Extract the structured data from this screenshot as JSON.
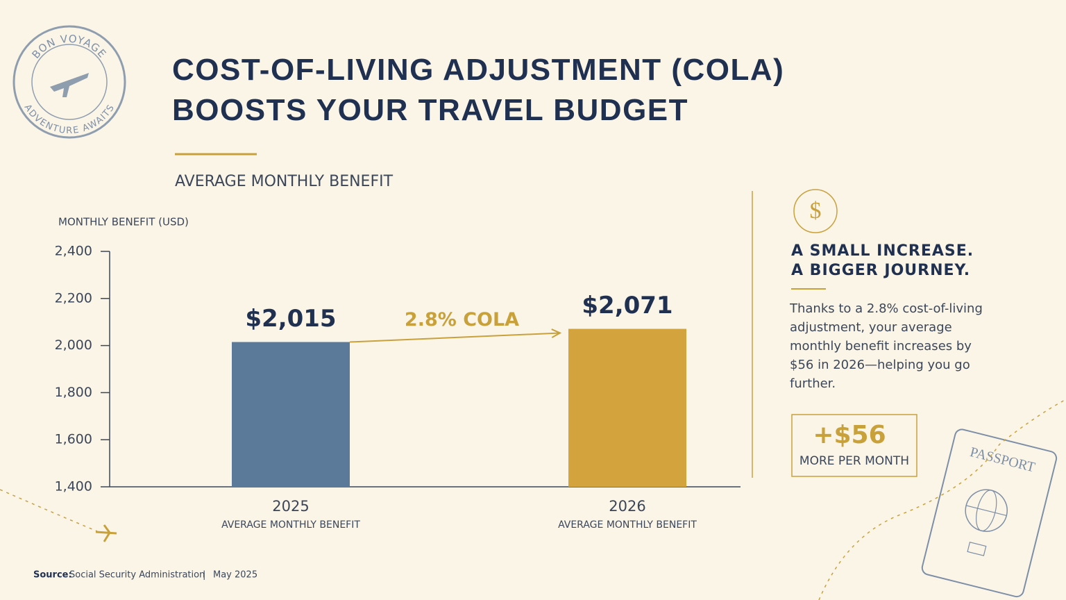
{
  "stamp": {
    "top": "BON VOYAGE",
    "bottom": "ADVENTURE AWAITS"
  },
  "chart_data": {
    "type": "bar",
    "title": "COST-OF-LIVING ADJUSTMENT (COLA)\nBOOSTS YOUR TRAVEL BUDGET",
    "subtitle": "AVERAGE MONTHLY BENEFIT",
    "y_label": "MONTHLY BENEFIT (USD)",
    "categories": [
      "2025",
      "2026"
    ],
    "category_notes": [
      "AVERAGE MONTHLY BENEFIT",
      "AVERAGE MONTHLY BENEFIT"
    ],
    "values": [
      2015,
      2071
    ],
    "value_labels": [
      "$2,015",
      "$2,071"
    ],
    "colors": [
      "#5b7a99",
      "#d3a33e"
    ],
    "annotation": "2.8% COLA",
    "ylim": [
      1400,
      2400
    ],
    "yticks": [
      {
        "value": 1400,
        "label": "1,400"
      },
      {
        "value": 1600,
        "label": "1,600"
      },
      {
        "value": 1800,
        "label": "1,800"
      },
      {
        "value": 2000,
        "label": "2,000"
      },
      {
        "value": 2200,
        "label": "2,200"
      },
      {
        "value": 2400,
        "label": "2,400"
      }
    ]
  },
  "panel": {
    "icon": "$",
    "heading": [
      "A SMALL INCREASE.",
      "A BIGGER JOURNEY."
    ],
    "body": "Thanks to a 2.8% cost-of-living adjustment, your average monthly benefit increases by $56 in 2026—helping you go further.",
    "callout": {
      "value": "+$56",
      "label": "MORE PER MONTH"
    }
  },
  "passport": "PASSPORT",
  "source": {
    "label": "Source:",
    "text": "Social Security Administration",
    "separator": "|",
    "date": "May 2025"
  }
}
